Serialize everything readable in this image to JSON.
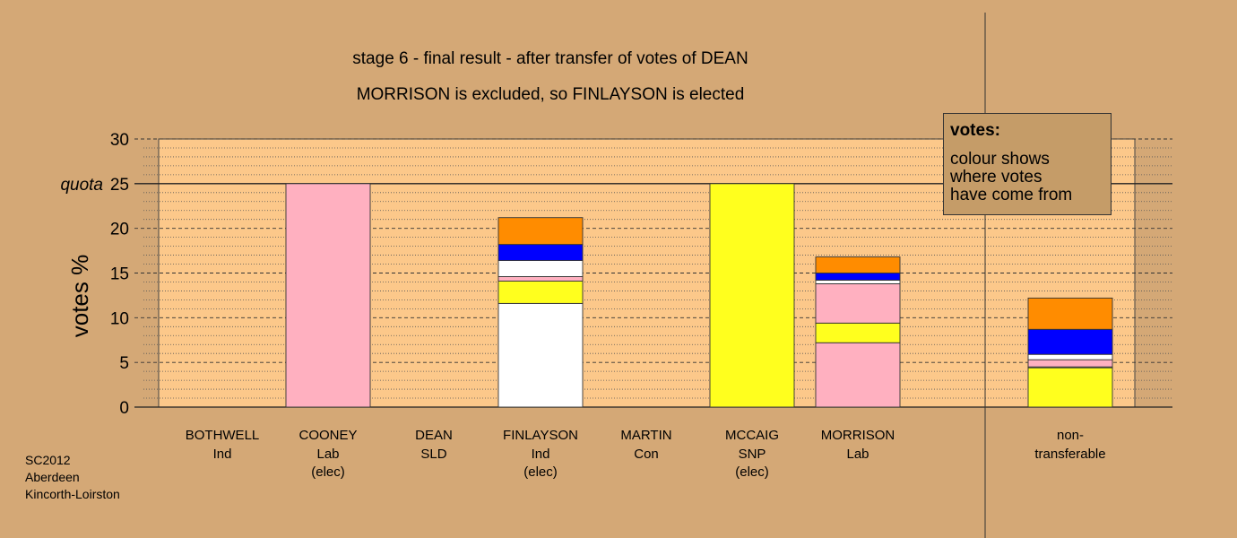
{
  "chart_data": {
    "type": "bar",
    "stacked": true,
    "title": "stage 6 - final result - after transfer of votes of DEAN",
    "subtitle": "MORRISON is excluded, so FINLAYSON is elected",
    "ylabel": "votes %",
    "ylim": [
      0,
      30
    ],
    "yticks": [
      "0",
      "5",
      "10",
      "15",
      "20",
      "25",
      "30"
    ],
    "quota_label": "quota",
    "quota": 25,
    "grid": true,
    "colors": {
      "background": "#d4a876",
      "plot": "#fcc88a",
      "pink": "#ffb0c0",
      "yellow": "#ffff1e",
      "white": "#ffffff",
      "blue": "#0000ff",
      "orange": "#ff8c00"
    },
    "categories": [
      {
        "name": "BOTHWELL",
        "party": "Ind",
        "status": ""
      },
      {
        "name": "COONEY",
        "party": "Lab",
        "status": "(elec)"
      },
      {
        "name": "DEAN",
        "party": "SLD",
        "status": ""
      },
      {
        "name": "FINLAYSON",
        "party": "Ind",
        "status": "(elec)"
      },
      {
        "name": "MARTIN",
        "party": "Con",
        "status": ""
      },
      {
        "name": "MCCAIG",
        "party": "SNP",
        "status": "(elec)"
      },
      {
        "name": "MORRISON",
        "party": "Lab",
        "status": ""
      }
    ],
    "nontransferable_label_1": "non-",
    "nontransferable_label_2": "transferable",
    "bars": [
      [],
      [
        {
          "color": "#ffb0c0",
          "value": 25.0
        }
      ],
      [],
      [
        {
          "color": "#ffffff",
          "value": 11.6
        },
        {
          "color": "#ffff1e",
          "value": 2.5
        },
        {
          "color": "#ffb0c0",
          "value": 0.5
        },
        {
          "color": "#ffffff",
          "value": 1.8
        },
        {
          "color": "#0000ff",
          "value": 1.8
        },
        {
          "color": "#ff8c00",
          "value": 3.0
        }
      ],
      [],
      [
        {
          "color": "#ffff1e",
          "value": 25.0
        }
      ],
      [
        {
          "color": "#ffb0c0",
          "value": 7.2
        },
        {
          "color": "#ffff1e",
          "value": 2.2
        },
        {
          "color": "#ffb0c0",
          "value": 4.4
        },
        {
          "color": "#ffffff",
          "value": 0.4
        },
        {
          "color": "#0000ff",
          "value": 0.8
        },
        {
          "color": "#ff8c00",
          "value": 1.8
        }
      ],
      [
        {
          "color": "#ffff1e",
          "value": 4.4
        },
        {
          "color": "#ffffff",
          "value": 0.1
        },
        {
          "color": "#ffb0c0",
          "value": 0.8
        },
        {
          "color": "#ffffff",
          "value": 0.6
        },
        {
          "color": "#0000ff",
          "value": 2.8
        },
        {
          "color": "#ff8c00",
          "value": 3.5
        }
      ]
    ]
  },
  "legend": {
    "title": "votes:",
    "line1": "colour shows",
    "line2": "where votes",
    "line3": "have come from"
  },
  "footnote": {
    "line1": "SC2012",
    "line2": "Aberdeen",
    "line3": "Kincorth-Loirston"
  }
}
